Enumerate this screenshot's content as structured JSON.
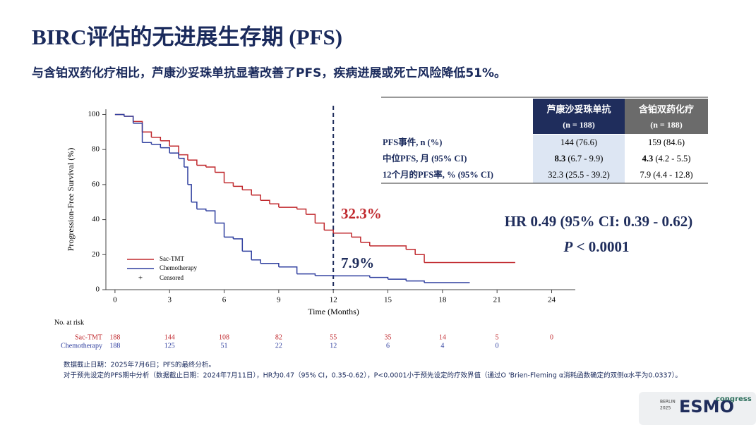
{
  "header": {
    "title": "BIRC评估的无进展生存期 (PFS)",
    "subtitle": "与含铂双药化疗相比，芦康沙妥珠单抗显著改善了PFS，疾病进展或死亡风险降低51%。"
  },
  "chart_data": {
    "type": "line",
    "step": true,
    "y_label": "Progression-Free Survival (%)",
    "x_label": "Time (Months)",
    "xlim": [
      -0.5,
      25.3
    ],
    "ylim": [
      0,
      103
    ],
    "xticks": [
      0,
      3,
      6,
      9,
      12,
      15,
      18,
      21,
      24
    ],
    "yticks": [
      0,
      20,
      40,
      60,
      80,
      100
    ],
    "reference_x": 12,
    "legend_position": "lower left",
    "censored_label": "Censored",
    "series": [
      {
        "name": "Sac-TMT",
        "color": "#c0282d",
        "x": [
          0,
          0.5,
          1,
          1.5,
          2,
          2.5,
          3,
          3.5,
          4,
          4.5,
          5,
          5.5,
          6,
          6.5,
          7,
          7.5,
          8,
          8.5,
          9,
          10,
          10.5,
          11,
          11.5,
          12,
          13,
          13.5,
          14,
          15,
          16,
          16.5,
          17,
          22
        ],
        "values": [
          100,
          99,
          96,
          90,
          87,
          85,
          82,
          77,
          74,
          71,
          70,
          67,
          61,
          59,
          57,
          54,
          51,
          49,
          47,
          46,
          43,
          38,
          34,
          32.3,
          30,
          27,
          25,
          25,
          23,
          20,
          15.5,
          15.5
        ]
      },
      {
        "name": "Chemotherapy",
        "color": "#2f3f9f",
        "x": [
          0,
          0.5,
          1,
          1.5,
          2,
          2.5,
          3,
          3.5,
          3.8,
          4,
          4.2,
          4.5,
          5,
          5.5,
          6,
          6.5,
          7,
          7.5,
          8,
          9,
          10,
          11,
          12,
          14,
          15,
          16,
          17,
          19.5
        ],
        "values": [
          100,
          99,
          95,
          84,
          83,
          81,
          78,
          75,
          70,
          60,
          50,
          46,
          45,
          38,
          30,
          29,
          22,
          17,
          15,
          13,
          9,
          8,
          7.9,
          7,
          6,
          5,
          4,
          4
        ]
      }
    ],
    "annotations": [
      {
        "text": "32.3%",
        "color": "#c0282d"
      },
      {
        "text": "7.9%",
        "color": "#1f2d5c"
      }
    ],
    "risk_table": {
      "title": "No. at risk",
      "rows": [
        {
          "name": "Sac-TMT",
          "color": "#c0282d",
          "values": [
            188,
            144,
            108,
            82,
            55,
            35,
            14,
            5,
            0
          ]
        },
        {
          "name": "Chemotherapy",
          "color": "#2f3f9f",
          "values": [
            188,
            125,
            51,
            22,
            12,
            6,
            4,
            0
          ]
        }
      ]
    }
  },
  "table": {
    "headers": [
      {
        "name": "芦康沙妥珠单抗",
        "n": "(n = 188)"
      },
      {
        "name": "含铂双药化疗",
        "n": "(n = 188)"
      }
    ],
    "rows": [
      {
        "label": "PFS事件, n (%)",
        "cells": [
          {
            "bold": "",
            "rest": "144 (76.6)"
          },
          {
            "bold": "",
            "rest": "159 (84.6)"
          }
        ]
      },
      {
        "label": "中位PFS, 月 (95% CI)",
        "cells": [
          {
            "bold": "8.3",
            "rest": " (6.7 - 9.9)"
          },
          {
            "bold": "4.3",
            "rest": " (4.2 - 5.5)"
          }
        ]
      },
      {
        "label": "12个月的PFS率, % (95% CI)",
        "cells": [
          {
            "bold": "",
            "rest": "32.3 (25.5 - 39.2)"
          },
          {
            "bold": "",
            "rest": "7.9 (4.4 - 12.8)"
          }
        ]
      }
    ]
  },
  "hr": "HR 0.49 (95% CI: 0.39 - 0.62)",
  "p_value": {
    "symbol": "P",
    "text": " < 0.0001"
  },
  "footnotes": [
    "数据截止日期：2025年7月6日；PFS的最终分析。",
    "对于预先设定的PFS期中分析（数据截止日期：2024年7月11日），HR为0.47（95% CI，0.35-0.62），P<0.0001小于预先设定的疗效界值（通过O 'Brien-Fleming α消耗函数确定的双侧α水平为0.0337）。"
  ],
  "logo": {
    "city": "BERLIN",
    "year": "2025",
    "brand": "ESMO",
    "suffix": "congress"
  }
}
